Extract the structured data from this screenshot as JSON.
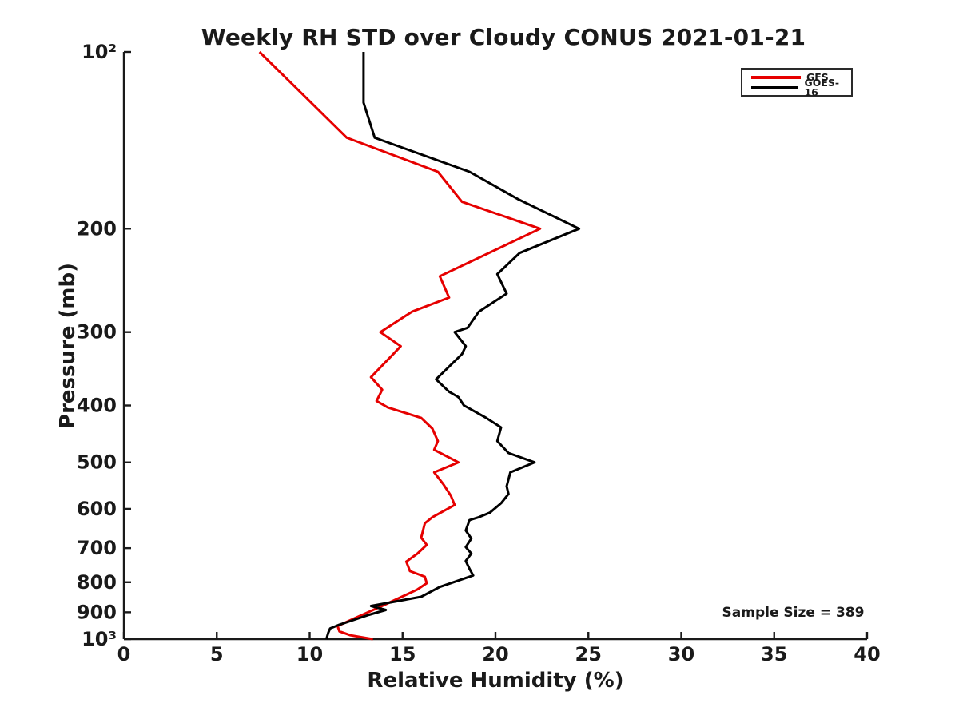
{
  "colors": {
    "axis": "#1a1a1a",
    "background": "#ffffff",
    "gfs_red": "#e60000",
    "goes_black": "#000000"
  },
  "chart_data": {
    "type": "line",
    "title": "Weekly RH STD over Cloudy CONUS 2021-01-21",
    "xlabel": "Relative Humidity (%)",
    "ylabel": "Pressure (mb)",
    "annotation": "Sample Size = 389",
    "sample_size": 389,
    "xlim": [
      0,
      40
    ],
    "pressure_range_mb": [
      100,
      1000
    ],
    "y_scale": "log",
    "y_axis_inverted": true,
    "grid": false,
    "legend_position": "top-right-inside",
    "x_ticks": [
      0,
      5,
      10,
      15,
      20,
      25,
      30,
      35,
      40
    ],
    "y_ticks": [
      {
        "v": 100,
        "label": "10²"
      },
      {
        "v": 200,
        "label": "200"
      },
      {
        "v": 300,
        "label": "300"
      },
      {
        "v": 400,
        "label": "400"
      },
      {
        "v": 500,
        "label": "500"
      },
      {
        "v": 600,
        "label": "600"
      },
      {
        "v": 700,
        "label": "700"
      },
      {
        "v": 800,
        "label": "800"
      },
      {
        "v": 900,
        "label": "900"
      },
      {
        "v": 1000,
        "label": "10³"
      }
    ],
    "series": [
      {
        "name": "GFS",
        "color": "#e60000",
        "points_pressure_rh": [
          [
            100,
            7.3
          ],
          [
            140,
            12.0
          ],
          [
            160,
            16.9
          ],
          [
            180,
            18.2
          ],
          [
            200,
            22.4
          ],
          [
            241,
            17.0
          ],
          [
            262,
            17.5
          ],
          [
            277,
            15.5
          ],
          [
            300,
            13.8
          ],
          [
            317,
            14.9
          ],
          [
            327,
            14.5
          ],
          [
            358,
            13.3
          ],
          [
            376,
            13.9
          ],
          [
            393,
            13.6
          ],
          [
            403,
            14.2
          ],
          [
            420,
            16.0
          ],
          [
            438,
            16.6
          ],
          [
            460,
            16.9
          ],
          [
            476,
            16.7
          ],
          [
            500,
            18.0
          ],
          [
            520,
            16.7
          ],
          [
            545,
            17.2
          ],
          [
            570,
            17.6
          ],
          [
            591,
            17.8
          ],
          [
            620,
            16.6
          ],
          [
            635,
            16.2
          ],
          [
            672,
            16.0
          ],
          [
            691,
            16.3
          ],
          [
            715,
            15.8
          ],
          [
            738,
            15.2
          ],
          [
            766,
            15.4
          ],
          [
            783,
            16.2
          ],
          [
            803,
            16.3
          ],
          [
            823,
            15.8
          ],
          [
            875,
            14.0
          ],
          [
            925,
            12.3
          ],
          [
            950,
            11.5
          ],
          [
            970,
            11.6
          ],
          [
            985,
            12.2
          ],
          [
            1000,
            13.4
          ]
        ]
      },
      {
        "name": "GOES-16",
        "color": "#000000",
        "points_pressure_rh": [
          [
            100,
            12.9
          ],
          [
            122,
            12.9
          ],
          [
            140,
            13.5
          ],
          [
            160,
            18.6
          ],
          [
            178,
            21.2
          ],
          [
            200,
            24.5
          ],
          [
            220,
            21.3
          ],
          [
            239,
            20.1
          ],
          [
            258,
            20.6
          ],
          [
            277,
            19.1
          ],
          [
            295,
            18.5
          ],
          [
            300,
            17.8
          ],
          [
            317,
            18.4
          ],
          [
            327,
            18.2
          ],
          [
            361,
            16.8
          ],
          [
            379,
            17.5
          ],
          [
            387,
            18.0
          ],
          [
            400,
            18.3
          ],
          [
            420,
            19.5
          ],
          [
            436,
            20.3
          ],
          [
            460,
            20.1
          ],
          [
            482,
            20.7
          ],
          [
            500,
            22.1
          ],
          [
            520,
            20.8
          ],
          [
            549,
            20.6
          ],
          [
            566,
            20.7
          ],
          [
            587,
            20.3
          ],
          [
            609,
            19.7
          ],
          [
            620,
            19.1
          ],
          [
            627,
            18.6
          ],
          [
            653,
            18.4
          ],
          [
            674,
            18.7
          ],
          [
            697,
            18.4
          ],
          [
            715,
            18.7
          ],
          [
            736,
            18.4
          ],
          [
            759,
            18.6
          ],
          [
            779,
            18.8
          ],
          [
            815,
            17.0
          ],
          [
            847,
            16.0
          ],
          [
            878,
            13.3
          ],
          [
            892,
            14.1
          ],
          [
            909,
            13.2
          ],
          [
            929,
            12.3
          ],
          [
            945,
            11.6
          ],
          [
            959,
            11.1
          ],
          [
            975,
            11.0
          ],
          [
            1000,
            10.9
          ]
        ]
      }
    ]
  }
}
